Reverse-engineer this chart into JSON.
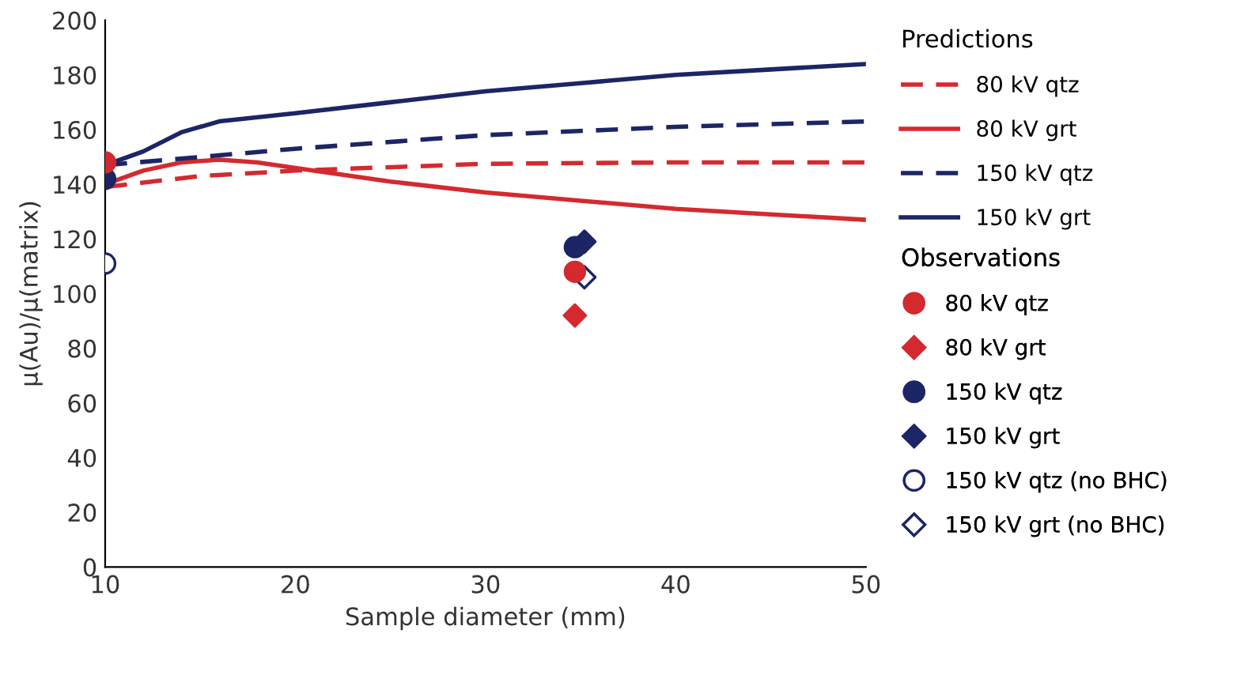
{
  "chart_data": {
    "type": "line",
    "xlabel": "Sample diameter (mm)",
    "ylabel": "μ(Au)/μ(matrix)",
    "xlim": [
      10,
      50
    ],
    "xticks": [
      10,
      20,
      30,
      40,
      50
    ],
    "ylim": [
      0,
      200
    ],
    "yticks": [
      0,
      20,
      40,
      60,
      80,
      100,
      120,
      140,
      160,
      180,
      200
    ],
    "grid": false,
    "legend": "right",
    "annotations": [
      "Predictions",
      "Observations"
    ],
    "series": [
      {
        "name": "80 kV qtz",
        "color": "#d42a2f",
        "line_style": "dashed",
        "x": [
          10,
          15,
          20,
          30,
          40,
          50
        ],
        "values": [
          139,
          143,
          145,
          147.5,
          148,
          148
        ]
      },
      {
        "name": "80 kV grt",
        "color": "#d42a2f",
        "line_style": "solid",
        "x": [
          10,
          12,
          14,
          16,
          18,
          20,
          25,
          30,
          35,
          40,
          45,
          50
        ],
        "values": [
          140,
          145,
          148,
          149,
          148,
          146,
          141,
          137,
          134,
          131,
          129,
          127
        ]
      },
      {
        "name": "150 kV qtz",
        "color": "#1c2566",
        "line_style": "dashed",
        "x": [
          10,
          20,
          30,
          40,
          50
        ],
        "values": [
          147,
          153,
          158,
          161,
          163
        ]
      },
      {
        "name": "150 kV grt",
        "color": "#1c2566",
        "line_style": "solid",
        "x": [
          10,
          12,
          14,
          16,
          20,
          25,
          30,
          35,
          40,
          45,
          50
        ],
        "values": [
          147,
          152,
          159,
          163,
          166,
          170,
          174,
          177,
          180,
          182,
          184
        ]
      },
      {
        "name": "80 kV qtz",
        "type": "scatter",
        "color": "#d42a2f",
        "marker": "circle",
        "x": [
          10,
          34.7
        ],
        "values": [
          148,
          108
        ]
      },
      {
        "name": "80 kV grt",
        "type": "scatter",
        "color": "#d42a2f",
        "marker": "diamond",
        "x": [
          34.7
        ],
        "values": [
          92
        ]
      },
      {
        "name": "150 kV qtz",
        "type": "scatter",
        "color": "#1c2566",
        "marker": "circle",
        "x": [
          10,
          34.7
        ],
        "values": [
          142,
          117
        ]
      },
      {
        "name": "150 kV grt",
        "type": "scatter",
        "color": "#1c2566",
        "marker": "diamond",
        "x": [
          35.2
        ],
        "values": [
          119
        ]
      },
      {
        "name": "150 kV qtz (no BHC)",
        "type": "scatter",
        "color": "#1c2566",
        "colors": [
          "#ffffff"
        ],
        "marker": "circle",
        "x": [
          10
        ],
        "values": [
          111
        ]
      },
      {
        "name": "150 kV grt (no BHC)",
        "type": "scatter",
        "color": "#1c2566",
        "colors": [
          "#ffffff"
        ],
        "marker": "diamond",
        "x": [
          35.2
        ],
        "values": [
          106
        ]
      }
    ]
  }
}
